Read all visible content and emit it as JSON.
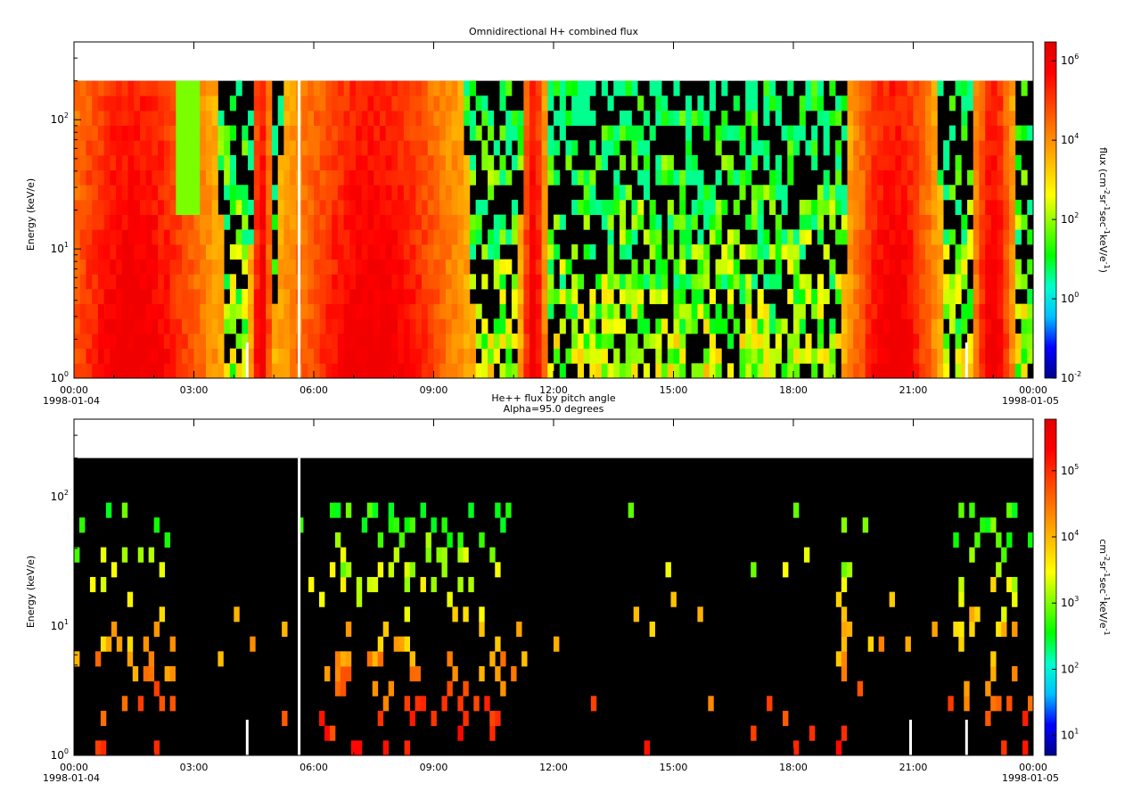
{
  "chart_data": [
    {
      "type": "heatmap",
      "title": "Omnidirectional H+ combined flux",
      "ylabel": "Energy (keV/e)",
      "y_scale": "log",
      "ylim": [
        1,
        400
      ],
      "data_ymax": 200,
      "x_range": [
        "1998-01-04 00:00",
        "1998-01-05 00:00"
      ],
      "xticks": [
        "00:00",
        "03:00",
        "06:00",
        "09:00",
        "12:00",
        "15:00",
        "18:00",
        "21:00",
        "00:00"
      ],
      "xtick_dates": [
        "1998-01-04",
        "1998-01-05"
      ],
      "yticks": [
        "10",
        "10",
        "10"
      ],
      "ytick_exponents": [
        "0",
        "1",
        "2"
      ],
      "colorbar": {
        "label": "flux (cm",
        "label_parts": [
          "flux (cm",
          "-2",
          "sr",
          "-1",
          "sec",
          "-1",
          "keV/e",
          "-1",
          ")"
        ],
        "scale": "log",
        "range": [
          0.01,
          3000000
        ],
        "ticks": [
          "10",
          "10",
          "10",
          "10",
          "10"
        ],
        "tick_exponents": [
          "-2",
          "0",
          "2",
          "4",
          "6"
        ],
        "colormap": [
          "#00008b",
          "#0000ff",
          "#00bfff",
          "#00ffcc",
          "#00ff00",
          "#7fff00",
          "#ffff00",
          "#ffbf00",
          "#ff8000",
          "#ff4000",
          "#ff0000",
          "#e00000"
        ]
      },
      "background_color": "#000000",
      "data_gaps_hours": [
        5.6,
        4.3,
        22.3
      ]
    },
    {
      "type": "heatmap",
      "title": "He++ flux by pitch angle",
      "subtitle": "Alpha=95.0 degrees",
      "ylabel": "Energy (keV/e)",
      "y_scale": "log",
      "ylim": [
        1,
        400
      ],
      "data_ymax": 200,
      "x_range": [
        "1998-01-04 00:00",
        "1998-01-05 00:00"
      ],
      "xticks": [
        "00:00",
        "03:00",
        "06:00",
        "09:00",
        "12:00",
        "15:00",
        "18:00",
        "21:00",
        "00:00"
      ],
      "xtick_dates": [
        "1998-01-04",
        "1998-01-05"
      ],
      "yticks": [
        "10",
        "10",
        "10"
      ],
      "ytick_exponents": [
        "0",
        "1",
        "2"
      ],
      "colorbar": {
        "label_parts": [
          "cm",
          "-2",
          "sr",
          "-1",
          "sec",
          "-1",
          "keV/e",
          "-1"
        ],
        "scale": "log",
        "range": [
          5,
          600000
        ],
        "ticks": [
          "10",
          "10",
          "10",
          "10",
          "10"
        ],
        "tick_exponents": [
          "1",
          "2",
          "3",
          "4",
          "5"
        ],
        "colormap": [
          "#00008b",
          "#0000ff",
          "#00bfff",
          "#00ffcc",
          "#00ff00",
          "#7fff00",
          "#ffff00",
          "#ffbf00",
          "#ff8000",
          "#ff4000",
          "#ff0000",
          "#e00000"
        ]
      },
      "background_color": "#000000",
      "data_gaps_hours": [
        5.6,
        4.3,
        20.9,
        22.3
      ]
    }
  ]
}
